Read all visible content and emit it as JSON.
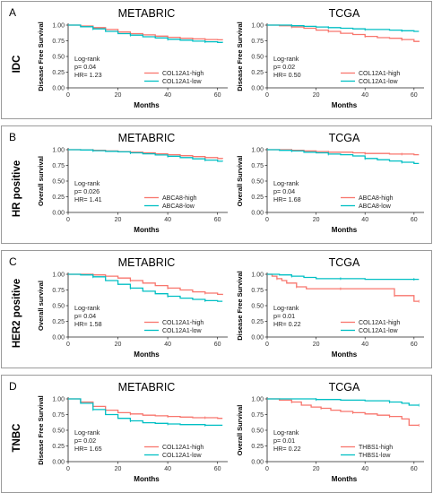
{
  "panels": [
    {
      "letter": "A",
      "side_label": "IDC",
      "charts": [
        {
          "type": "line",
          "title": "METABRIC",
          "xlabel": "Months",
          "ylabel": "Disease Free Survival",
          "xlim": [
            0,
            63
          ],
          "ylim": [
            0,
            1
          ],
          "xticks": [
            "0",
            "20",
            "40",
            "60"
          ],
          "yticks": [
            "0.00",
            "0.25",
            "0.50",
            "0.75",
            "1.00"
          ],
          "stats": [
            "Log-rank",
            "p= 0.04",
            "HR= 1.23"
          ],
          "series": [
            {
              "name": "COL12A1-high",
              "color": "#F8766D",
              "x": [
                0,
                5,
                10,
                15,
                20,
                25,
                30,
                35,
                40,
                45,
                50,
                55,
                60,
                62
              ],
              "y": [
                1.0,
                0.985,
                0.96,
                0.93,
                0.89,
                0.865,
                0.845,
                0.825,
                0.805,
                0.79,
                0.78,
                0.77,
                0.765,
                0.76
              ]
            },
            {
              "name": "COL12A1-low",
              "color": "#00BFC4",
              "x": [
                0,
                5,
                10,
                15,
                20,
                25,
                30,
                35,
                40,
                45,
                50,
                55,
                60,
                62
              ],
              "y": [
                1.0,
                0.975,
                0.94,
                0.9,
                0.865,
                0.84,
                0.815,
                0.795,
                0.775,
                0.76,
                0.745,
                0.735,
                0.725,
                0.72
              ]
            }
          ]
        },
        {
          "type": "line",
          "title": "TCGA",
          "xlabel": "Months",
          "ylabel": "Disease Free Survival",
          "xlim": [
            0,
            63
          ],
          "ylim": [
            0,
            1
          ],
          "xticks": [
            "0",
            "20",
            "40",
            "60"
          ],
          "yticks": [
            "0.00",
            "0.25",
            "0.50",
            "0.75",
            "1.00"
          ],
          "stats": [
            "Log-rank",
            "p= 0.02",
            "HR= 0.50"
          ],
          "series": [
            {
              "name": "COL12A1-high",
              "color": "#F8766D",
              "x": [
                0,
                5,
                10,
                15,
                20,
                25,
                30,
                35,
                40,
                45,
                50,
                55,
                60,
                62
              ],
              "y": [
                1.0,
                0.99,
                0.97,
                0.95,
                0.92,
                0.9,
                0.87,
                0.85,
                0.82,
                0.8,
                0.79,
                0.77,
                0.74,
                0.73
              ]
            },
            {
              "name": "COL12A1-low",
              "color": "#00BFC4",
              "x": [
                0,
                5,
                10,
                15,
                20,
                25,
                30,
                35,
                40,
                45,
                50,
                55,
                60,
                62
              ],
              "y": [
                1.0,
                1.0,
                0.99,
                0.98,
                0.97,
                0.96,
                0.95,
                0.94,
                0.93,
                0.93,
                0.92,
                0.91,
                0.9,
                0.9
              ]
            }
          ]
        }
      ]
    },
    {
      "letter": "B",
      "side_label": "HR positive",
      "charts": [
        {
          "type": "line",
          "title": "METABRIC",
          "xlabel": "Months",
          "ylabel": "Overall survival",
          "xlim": [
            0,
            63
          ],
          "ylim": [
            0,
            1
          ],
          "xticks": [
            "0",
            "20",
            "40",
            "60"
          ],
          "yticks": [
            "0.00",
            "0.25",
            "0.50",
            "0.75",
            "1.00"
          ],
          "stats": [
            "Log-rank",
            "p= 0.026",
            "HR= 1.41"
          ],
          "series": [
            {
              "name": "ABCA8-high",
              "color": "#F8766D",
              "x": [
                0,
                5,
                10,
                15,
                20,
                25,
                30,
                35,
                40,
                45,
                50,
                55,
                60,
                62
              ],
              "y": [
                1.0,
                0.995,
                0.99,
                0.98,
                0.97,
                0.96,
                0.95,
                0.935,
                0.92,
                0.905,
                0.89,
                0.875,
                0.86,
                0.855
              ]
            },
            {
              "name": "ABCA8-low",
              "color": "#00BFC4",
              "x": [
                0,
                5,
                10,
                15,
                20,
                25,
                30,
                35,
                40,
                45,
                50,
                55,
                60,
                62
              ],
              "y": [
                1.0,
                0.995,
                0.985,
                0.975,
                0.965,
                0.95,
                0.935,
                0.915,
                0.895,
                0.875,
                0.855,
                0.835,
                0.815,
                0.81
              ]
            }
          ]
        },
        {
          "type": "line",
          "title": "TCGA",
          "xlabel": "Months",
          "ylabel": "Overall Survival",
          "xlim": [
            0,
            63
          ],
          "ylim": [
            0,
            1
          ],
          "xticks": [
            "0",
            "20",
            "40",
            "60"
          ],
          "yticks": [
            "0.00",
            "0.25",
            "0.50",
            "0.75",
            "1.00"
          ],
          "stats": [
            "Log-rank",
            "p= 0.04",
            "HR= 1.68"
          ],
          "series": [
            {
              "name": "ABCA8-high",
              "color": "#F8766D",
              "x": [
                0,
                5,
                10,
                15,
                20,
                25,
                30,
                35,
                40,
                45,
                50,
                55,
                60,
                62
              ],
              "y": [
                1.0,
                1.0,
                0.99,
                0.98,
                0.97,
                0.96,
                0.96,
                0.95,
                0.94,
                0.94,
                0.93,
                0.93,
                0.92,
                0.92
              ]
            },
            {
              "name": "ABCA8-low",
              "color": "#00BFC4",
              "x": [
                0,
                5,
                10,
                15,
                20,
                25,
                30,
                35,
                40,
                45,
                50,
                55,
                60,
                62
              ],
              "y": [
                1.0,
                0.99,
                0.98,
                0.96,
                0.95,
                0.93,
                0.92,
                0.9,
                0.86,
                0.84,
                0.82,
                0.8,
                0.78,
                0.78
              ]
            }
          ]
        }
      ]
    },
    {
      "letter": "C",
      "side_label": "HER2 positive",
      "charts": [
        {
          "type": "line",
          "title": "METABRIC",
          "xlabel": "Months",
          "ylabel": "Overall survival",
          "xlim": [
            0,
            63
          ],
          "ylim": [
            0,
            1
          ],
          "xticks": [
            "0",
            "20",
            "40",
            "60"
          ],
          "yticks": [
            "0.00",
            "0.25",
            "0.50",
            "0.75",
            "1.00"
          ],
          "stats": [
            "Log-rank",
            "p= 0.04",
            "HR= 1.58"
          ],
          "series": [
            {
              "name": "COL12A1-high",
              "color": "#F8766D",
              "x": [
                0,
                5,
                10,
                15,
                20,
                25,
                30,
                35,
                40,
                45,
                50,
                55,
                60,
                62
              ],
              "y": [
                1.0,
                1.0,
                0.99,
                0.97,
                0.94,
                0.9,
                0.86,
                0.82,
                0.78,
                0.75,
                0.72,
                0.7,
                0.68,
                0.67
              ]
            },
            {
              "name": "COL12A1-low",
              "color": "#00BFC4",
              "x": [
                0,
                5,
                10,
                15,
                20,
                25,
                30,
                35,
                40,
                45,
                50,
                55,
                60,
                62
              ],
              "y": [
                1.0,
                0.99,
                0.96,
                0.9,
                0.84,
                0.78,
                0.73,
                0.69,
                0.65,
                0.62,
                0.6,
                0.58,
                0.57,
                0.57
              ]
            }
          ]
        },
        {
          "type": "line",
          "title": "TCGA",
          "xlabel": "Months",
          "ylabel": "Disease Free Survival",
          "xlim": [
            0,
            63
          ],
          "ylim": [
            0,
            1
          ],
          "xticks": [
            "0",
            "20",
            "40",
            "60"
          ],
          "yticks": [
            "0.00",
            "0.25",
            "0.50",
            "0.75",
            "1.00"
          ],
          "stats": [
            "Log-rank",
            "p= 0.01",
            "HR= 0.22"
          ],
          "series": [
            {
              "name": "COL12A1-high",
              "color": "#F8766D",
              "x": [
                0,
                2,
                4,
                6,
                8,
                12,
                16,
                20,
                30,
                40,
                50,
                52,
                58,
                60,
                62
              ],
              "y": [
                1.0,
                0.97,
                0.93,
                0.9,
                0.86,
                0.8,
                0.77,
                0.77,
                0.77,
                0.77,
                0.77,
                0.66,
                0.66,
                0.57,
                0.57
              ]
            },
            {
              "name": "COL12A1-low",
              "color": "#00BFC4",
              "x": [
                0,
                5,
                10,
                15,
                20,
                30,
                40,
                50,
                60,
                62
              ],
              "y": [
                1.0,
                0.99,
                0.97,
                0.95,
                0.93,
                0.93,
                0.92,
                0.92,
                0.92,
                0.92
              ]
            }
          ]
        }
      ]
    },
    {
      "letter": "D",
      "side_label": "TNBC",
      "charts": [
        {
          "type": "line",
          "title": "METABRIC",
          "xlabel": "Months",
          "ylabel": "Disease Free Survival",
          "xlim": [
            0,
            63
          ],
          "ylim": [
            0,
            1
          ],
          "xticks": [
            "0",
            "20",
            "40",
            "60"
          ],
          "yticks": [
            "0.00",
            "0.25",
            "0.50",
            "0.75",
            "1.00"
          ],
          "stats": [
            "Log-rank",
            "p= 0.02",
            "HR= 1.65"
          ],
          "series": [
            {
              "name": "COL12A1-high",
              "color": "#F8766D",
              "x": [
                0,
                5,
                10,
                15,
                20,
                25,
                30,
                35,
                40,
                45,
                50,
                55,
                60,
                62
              ],
              "y": [
                1.0,
                0.95,
                0.88,
                0.82,
                0.78,
                0.76,
                0.74,
                0.73,
                0.72,
                0.71,
                0.7,
                0.7,
                0.69,
                0.69
              ]
            },
            {
              "name": "COL12A1-low",
              "color": "#00BFC4",
              "x": [
                0,
                5,
                10,
                15,
                20,
                25,
                30,
                35,
                40,
                45,
                50,
                55,
                60,
                62
              ],
              "y": [
                1.0,
                0.93,
                0.83,
                0.75,
                0.69,
                0.65,
                0.62,
                0.61,
                0.6,
                0.59,
                0.59,
                0.58,
                0.58,
                0.58
              ]
            }
          ]
        },
        {
          "type": "line",
          "title": "TCGA",
          "xlabel": "Months",
          "ylabel": "Overall Survival",
          "xlim": [
            0,
            63
          ],
          "ylim": [
            0,
            1
          ],
          "xticks": [
            "0",
            "20",
            "40",
            "60"
          ],
          "yticks": [
            "0.00",
            "0.25",
            "0.50",
            "0.75",
            "1.00"
          ],
          "stats": [
            "Log-rank",
            "p= 0.01",
            "HR= 0.22"
          ],
          "series": [
            {
              "name": "THBS1-high",
              "color": "#F8766D",
              "x": [
                0,
                5,
                10,
                14,
                18,
                22,
                26,
                30,
                35,
                40,
                45,
                50,
                55,
                58,
                62
              ],
              "y": [
                1.0,
                0.98,
                0.95,
                0.9,
                0.87,
                0.85,
                0.82,
                0.8,
                0.78,
                0.76,
                0.74,
                0.72,
                0.68,
                0.58,
                0.58
              ]
            },
            {
              "name": "THBS1-low",
              "color": "#00BFC4",
              "x": [
                0,
                10,
                20,
                30,
                40,
                50,
                55,
                58,
                62
              ],
              "y": [
                1.0,
                1.0,
                0.99,
                0.98,
                0.97,
                0.95,
                0.93,
                0.9,
                0.9
              ]
            }
          ]
        }
      ]
    }
  ]
}
